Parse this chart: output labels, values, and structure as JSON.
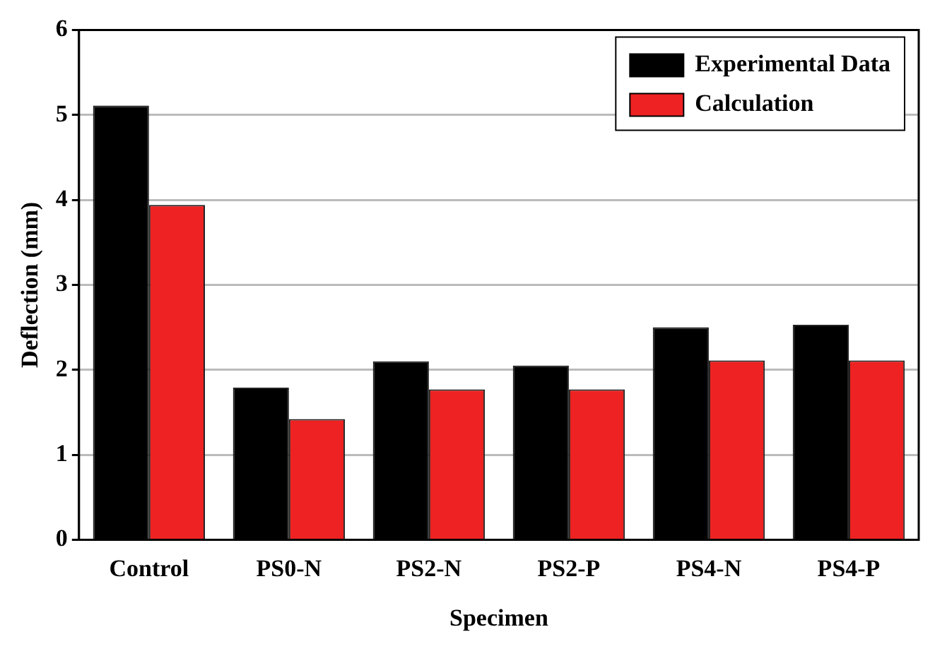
{
  "chart_data": {
    "type": "bar",
    "xlabel": "Specimen",
    "ylabel": "Deflection (mm)",
    "categories": [
      "Control",
      "PS0-N",
      "PS2-N",
      "PS2-P",
      "PS4-N",
      "PS4-P"
    ],
    "series": [
      {
        "name": "Experimental Data",
        "color": "#000000",
        "values": [
          5.11,
          1.79,
          2.1,
          2.05,
          2.5,
          2.53
        ]
      },
      {
        "name": "Calculation",
        "color": "#ee2222",
        "values": [
          3.94,
          1.42,
          1.77,
          1.77,
          2.11,
          2.11
        ]
      }
    ],
    "ylim": [
      0,
      6
    ],
    "yticks": [
      0,
      1,
      2,
      3,
      4,
      5,
      6
    ],
    "grid": "y",
    "legend": "top right"
  }
}
